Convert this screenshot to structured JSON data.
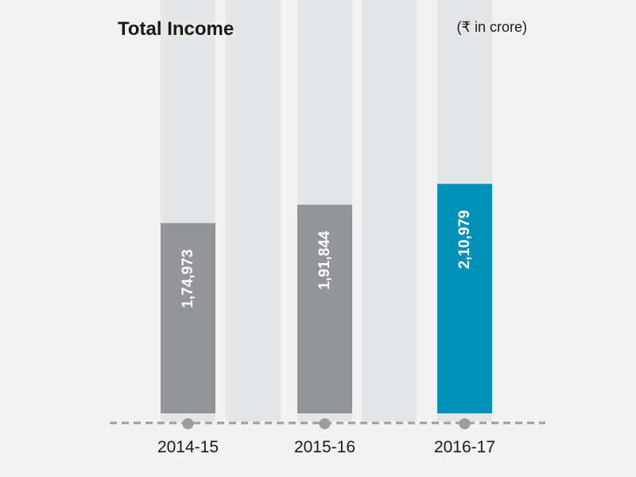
{
  "chart_data": {
    "type": "bar",
    "title": "Total Income",
    "unit_note": "(₹ in crore)",
    "categories": [
      "2014-15",
      "2015-16",
      "2016-17"
    ],
    "values": [
      174973,
      191844,
      210979
    ],
    "value_labels": [
      "1,74,973",
      "1,91,844",
      "2,10,979"
    ],
    "ylim": [
      0,
      380000
    ],
    "grid": false,
    "colors": {
      "past": "#939598",
      "current": "#0090b8",
      "track": "#e5e6e8",
      "axis": "#9d9d9d",
      "text": "#1a1a1a"
    }
  }
}
